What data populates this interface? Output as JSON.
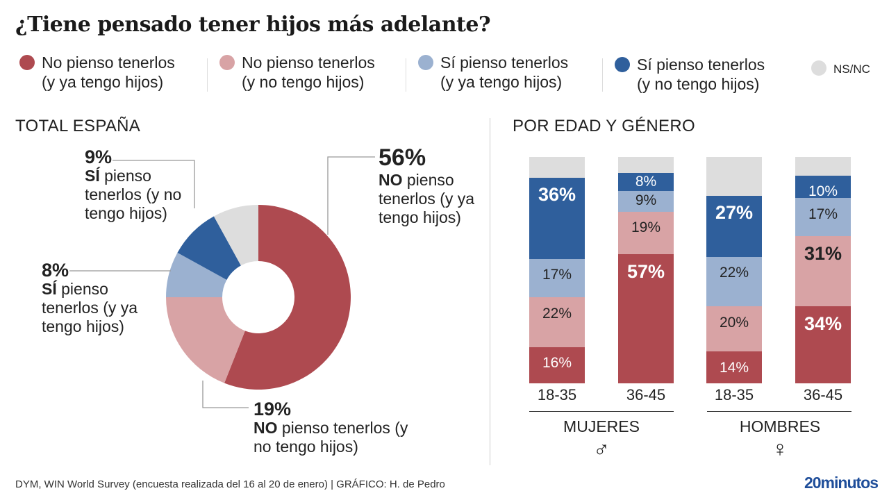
{
  "title": "¿Tiene pensado tener hijos más adelante?",
  "legend": [
    {
      "line1": "No pienso tenerlos",
      "line2": "(y ya tengo hijos)",
      "color": "#ae4a50"
    },
    {
      "line1": "No pienso tenerlos",
      "line2": "(y no tengo hijos)",
      "color": "#d8a3a5"
    },
    {
      "line1": "Sí pienso tenerlos",
      "line2": "(y ya tengo hijos)",
      "color": "#9bb1d0"
    },
    {
      "line1": "Sí pienso tenerlos",
      "line2": "(y no tengo hijos)",
      "color": "#2f5f9c"
    },
    {
      "line1": "NS/NC",
      "line2": "",
      "color": "#dddddd"
    }
  ],
  "chart_data": [
    {
      "type": "pie",
      "title": "TOTAL ESPAÑA",
      "donut": true,
      "slices": [
        {
          "category": "No pienso tenerlos (y ya tengo hijos)",
          "value": 56,
          "label_pct": "56%",
          "label_bold": "NO",
          "label_rest": " pienso tenerlos (y ya tengo hijos)"
        },
        {
          "category": "No pienso tenerlos (y no tengo hijos)",
          "value": 19,
          "label_pct": "19%",
          "label_bold": "NO",
          "label_rest": " pienso tenerlos (y no tengo hijos)"
        },
        {
          "category": "Sí pienso tenerlos (y ya tengo hijos)",
          "value": 8,
          "label_pct": "8%",
          "label_bold": "SÍ",
          "label_rest": " pienso tenerlos (y ya tengo hijos)"
        },
        {
          "category": "Sí pienso tenerlos (y no tengo hijos)",
          "value": 9,
          "label_pct": "9%",
          "label_bold": "SÍ",
          "label_rest": " pienso tenerlos (y no tengo hijos)"
        },
        {
          "category": "NS/NC",
          "value": 8
        }
      ]
    },
    {
      "type": "bar",
      "stacked": true,
      "title": "POR EDAD Y GÉNERO",
      "categories": [
        "18-35",
        "36-45",
        "18-35",
        "36-45"
      ],
      "groups": [
        {
          "label": "MUJERES",
          "symbol": "♂"
        },
        {
          "label": "HOMBRES",
          "symbol": "♀"
        }
      ],
      "ylim": [
        0,
        100
      ],
      "series": [
        {
          "name": "No pienso tenerlos (y ya tengo hijos)",
          "values": [
            16,
            57,
            14,
            34
          ]
        },
        {
          "name": "No pienso tenerlos (y no tengo hijos)",
          "values": [
            22,
            19,
            20,
            31
          ]
        },
        {
          "name": "Sí pienso tenerlos (y ya tengo hijos)",
          "values": [
            17,
            9,
            22,
            17
          ]
        },
        {
          "name": "Sí pienso tenerlos (y no tengo hijos)",
          "values": [
            36,
            8,
            27,
            10
          ]
        },
        {
          "name": "NS/NC",
          "values": [
            9,
            7,
            17,
            8
          ]
        }
      ]
    }
  ],
  "footer": "DYM, WIN World Survey (encuesta realizada del 16 al 20 de enero)  |  GRÁFICO: H. de Pedro",
  "logo": "20minutos"
}
